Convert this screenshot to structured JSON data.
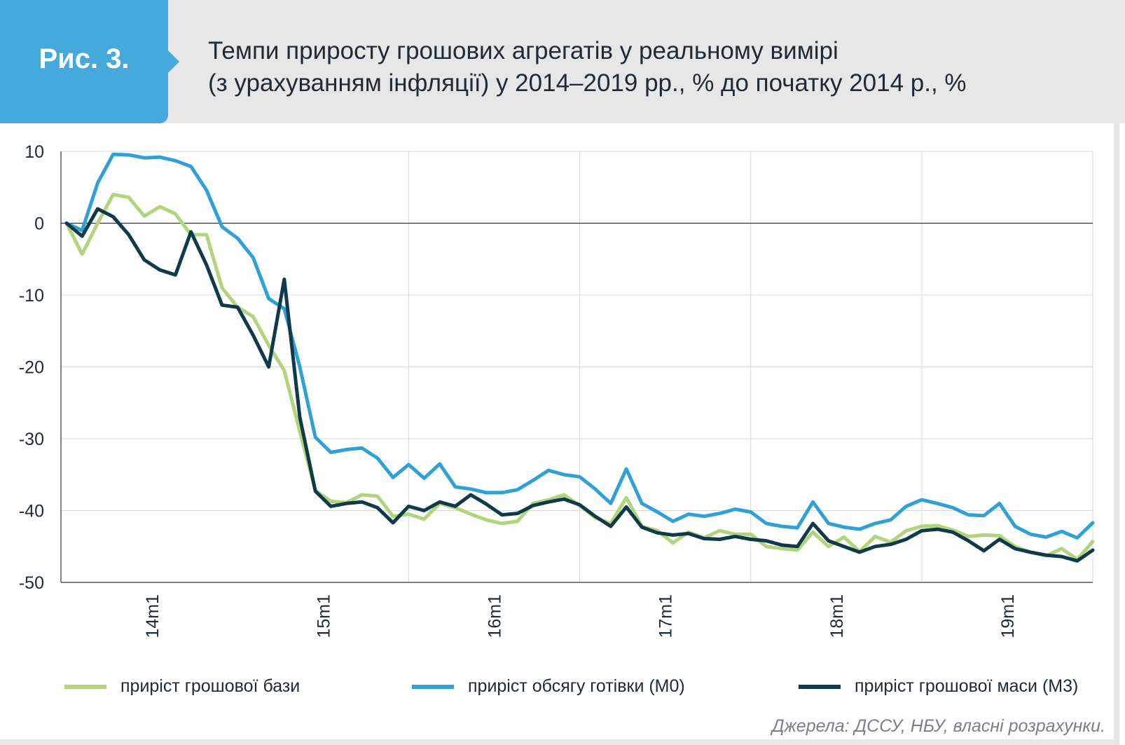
{
  "header": {
    "fig_label": "Рис. 3.",
    "title_line1": "Темпи приросту грошових агрегатів у реальному вимірі",
    "title_line2": "(з урахуванням інфляції) у 2014–2019 рр., % до початку 2014 р., %"
  },
  "colors": {
    "header_band": "#e7e7e8",
    "fig_tab": "#46a9dc",
    "grid": "#d9d9d9",
    "axis": "#333333"
  },
  "chart_data": {
    "type": "line",
    "title": "Темпи приросту грошових агрегатів у реальному вимірі (з урахуванням інфляції) у 2014–2019 рр., % до початку 2014 р., %",
    "xlabel": "",
    "ylabel": "",
    "ylim": [
      -50,
      10
    ],
    "yticks": [
      10,
      0,
      -10,
      -20,
      -30,
      -40,
      -50
    ],
    "x_range": [
      0,
      66
    ],
    "x_tick_labels": [
      "14m1",
      "15m1",
      "16m1",
      "17m1",
      "18m1",
      "19m1"
    ],
    "x_tick_positions": [
      5.5,
      16.5,
      27.5,
      38.5,
      49.5,
      60.5
    ],
    "x_grid_positions": [
      22,
      33,
      44,
      55
    ],
    "grid": true,
    "legend_position": "bottom",
    "series": [
      {
        "name": "приріст грошової бази",
        "color": "#b2d47c",
        "values": [
          0,
          -4.3,
          0,
          4,
          3.6,
          1,
          2.3,
          1.3,
          -1.6,
          -1.6,
          -9,
          -11.7,
          -13,
          -17,
          -20.5,
          -29,
          -37.2,
          -38.7,
          -38.9,
          -37.8,
          -38,
          -40.8,
          -40.5,
          -41.2,
          -39,
          -39.6,
          -40.5,
          -41.3,
          -41.8,
          -41.5,
          -39,
          -38.5,
          -37.8,
          -39.3,
          -41,
          -41.8,
          -38.2,
          -42.2,
          -42.8,
          -44.5,
          -43,
          -43.8,
          -42.8,
          -43.3,
          -43.3,
          -45,
          -45.3,
          -45.5,
          -43,
          -45,
          -43.7,
          -45.7,
          -43.6,
          -44.4,
          -42.8,
          -42.2,
          -42.1,
          -42.7,
          -43.6,
          -43.4,
          -43.5,
          -45,
          -45.8,
          -46.3,
          -45.3,
          -46.8,
          -44.3
        ]
      },
      {
        "name": "приріст обсягу готівки (M0)",
        "color": "#2fa1d6",
        "values": [
          0,
          -1,
          5.6,
          9.6,
          9.5,
          9.1,
          9.2,
          8.7,
          7.9,
          4.6,
          -0.5,
          -2.1,
          -4.8,
          -10.5,
          -11.9,
          -20,
          -29.8,
          -31.9,
          -31.5,
          -31.3,
          -32.7,
          -35.4,
          -33.6,
          -35.5,
          -33.5,
          -36.7,
          -37,
          -37.5,
          -37.5,
          -37.1,
          -35.8,
          -34.4,
          -35,
          -35.3,
          -37,
          -39,
          -34.2,
          -39,
          -40.2,
          -41.5,
          -40.5,
          -40.8,
          -40.4,
          -39.8,
          -40.2,
          -41.8,
          -42.2,
          -42.4,
          -38.8,
          -41.8,
          -42.3,
          -42.6,
          -41.8,
          -41.3,
          -39.4,
          -38.5,
          -39,
          -39.6,
          -40.6,
          -40.7,
          -39,
          -42.2,
          -43.3,
          -43.7,
          -42.9,
          -43.8,
          -41.7
        ]
      },
      {
        "name": "приріст грошової маси (M3)",
        "color": "#0e3a4c",
        "values": [
          0,
          -1.8,
          2,
          0.9,
          -1.6,
          -5.1,
          -6.5,
          -7.2,
          -1.2,
          -5.8,
          -11.4,
          -11.7,
          -15.6,
          -20,
          -7.8,
          -27,
          -37.3,
          -39.4,
          -39,
          -38.8,
          -39.6,
          -41.7,
          -39.4,
          -40,
          -38.8,
          -39.4,
          -37.8,
          -39.1,
          -40.6,
          -40.4,
          -39.3,
          -38.8,
          -38.4,
          -39.2,
          -40.8,
          -42.2,
          -39.5,
          -42.3,
          -43.1,
          -43.4,
          -43.2,
          -43.9,
          -44,
          -43.6,
          -44,
          -44.2,
          -44.8,
          -45,
          -41.8,
          -44.2,
          -45,
          -45.8,
          -45,
          -44.7,
          -44,
          -42.8,
          -42.6,
          -43,
          -44.2,
          -45.6,
          -44,
          -45.3,
          -45.8,
          -46.2,
          -46.4,
          -47,
          -45.5
        ]
      }
    ]
  },
  "legend": [
    {
      "label": "приріст грошової бази",
      "color": "#b2d47c"
    },
    {
      "label": "приріст обсягу готівки (M0)",
      "color": "#2fa1d6"
    },
    {
      "label": "приріст грошової маси (M3)",
      "color": "#0e3a4c"
    }
  ],
  "source": "Джерела: ДССУ, НБУ, власні розрахунки."
}
